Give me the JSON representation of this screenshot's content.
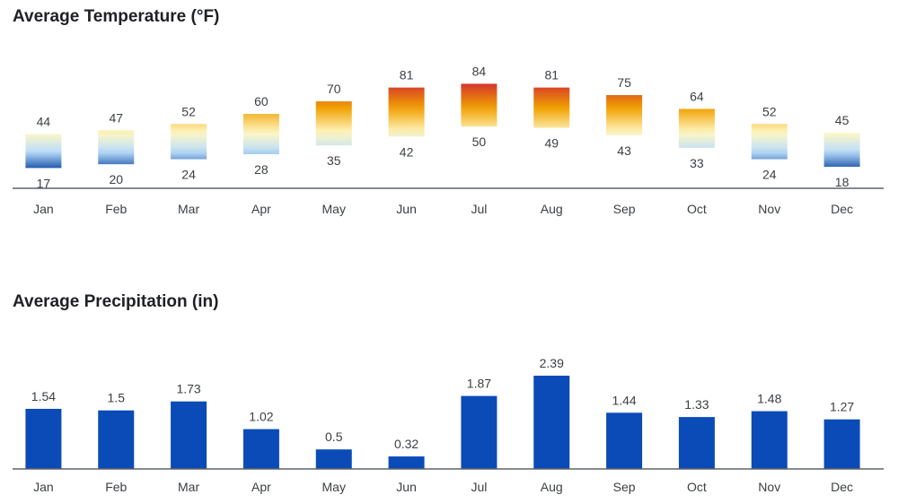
{
  "chart_data": [
    {
      "type": "range-bar",
      "title": "Average Temperature (°F)",
      "categories": [
        "Jan",
        "Feb",
        "Mar",
        "Apr",
        "May",
        "Jun",
        "Jul",
        "Aug",
        "Sep",
        "Oct",
        "Nov",
        "Dec"
      ],
      "series": [
        {
          "values_high": [
            44,
            47,
            52,
            60,
            70,
            81,
            84,
            81,
            75,
            64,
            52,
            45
          ],
          "values_low": [
            17,
            20,
            24,
            28,
            35,
            42,
            50,
            49,
            43,
            33,
            24,
            18
          ]
        }
      ],
      "ylim": [
        8,
        95
      ],
      "grid": false,
      "colors": {
        "cold": "#0d47a1",
        "cool": "#bbdefb",
        "mild": "#fff8c4",
        "warm": "#f0a000",
        "hot": "#d32f2f",
        "axis": "#5f6368",
        "text": "#3c4043"
      }
    },
    {
      "type": "bar",
      "title": "Average Precipitation (in)",
      "categories": [
        "Jan",
        "Feb",
        "Mar",
        "Apr",
        "May",
        "Jun",
        "Jul",
        "Aug",
        "Sep",
        "Oct",
        "Nov",
        "Dec"
      ],
      "values": [
        1.54,
        1.5,
        1.73,
        1.02,
        0.5,
        0.32,
        1.87,
        2.39,
        1.44,
        1.33,
        1.48,
        1.27
      ],
      "ylim": [
        0,
        2.6
      ],
      "grid": false,
      "colors": {
        "bar": "#0a4bb8",
        "axis": "#5f6368",
        "text": "#3c4043"
      }
    }
  ]
}
